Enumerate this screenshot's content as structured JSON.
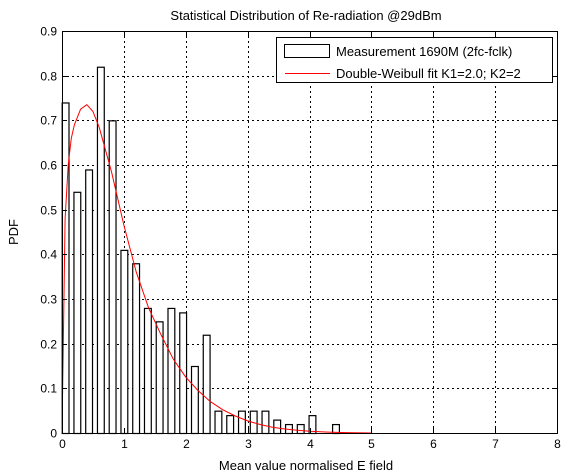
{
  "chart_data": {
    "type": "bar",
    "title": "Statistical Distribution of Re-radiation @29dBm",
    "xlabel": "Mean value normalised E field",
    "ylabel": "PDF",
    "xlim": [
      0,
      8
    ],
    "ylim": [
      0,
      0.9
    ],
    "xticks": [
      "0",
      "1",
      "2",
      "3",
      "4",
      "5",
      "6",
      "7",
      "8"
    ],
    "yticks": [
      "0",
      "0.1",
      "0.2",
      "0.3",
      "0.4",
      "0.5",
      "0.6",
      "0.7",
      "0.8",
      "0.9"
    ],
    "grid": true,
    "legend_position": "top-right",
    "bar_width": 0.11,
    "series": [
      {
        "name": "Measurement 1690M (2fc-fclk)",
        "kind": "histogram",
        "color": "#000000",
        "x": [
          0.05,
          0.24,
          0.43,
          0.62,
          0.81,
          1.0,
          1.19,
          1.38,
          1.57,
          1.76,
          1.95,
          2.14,
          2.33,
          2.52,
          2.71,
          2.9,
          3.09,
          3.28,
          3.47,
          3.66,
          3.85,
          4.04,
          4.23,
          4.42,
          4.61,
          4.8,
          4.99
        ],
        "values": [
          0.74,
          0.54,
          0.59,
          0.82,
          0.7,
          0.41,
          0.38,
          0.28,
          0.25,
          0.28,
          0.27,
          0.15,
          0.22,
          0.05,
          0.04,
          0.05,
          0.05,
          0.05,
          0.03,
          0.02,
          0.02,
          0.04,
          0.0,
          0.02,
          0.0,
          0.0,
          0.0
        ]
      },
      {
        "name": "Double-Weibull fit K1=2.0; K2=2",
        "kind": "line",
        "color": "#ff0000",
        "x": [
          0,
          0.05,
          0.1,
          0.15,
          0.2,
          0.3,
          0.4,
          0.5,
          0.6,
          0.7,
          0.8,
          0.9,
          1.0,
          1.2,
          1.4,
          1.6,
          1.8,
          2.0,
          2.2,
          2.4,
          2.6,
          2.8,
          3.0,
          3.2,
          3.4,
          3.6,
          3.8,
          4.0,
          4.3,
          4.6,
          5.0
        ],
        "values": [
          0.0,
          0.48,
          0.6,
          0.66,
          0.69,
          0.725,
          0.735,
          0.72,
          0.685,
          0.635,
          0.585,
          0.525,
          0.465,
          0.36,
          0.28,
          0.22,
          0.165,
          0.125,
          0.095,
          0.07,
          0.052,
          0.038,
          0.027,
          0.019,
          0.013,
          0.009,
          0.006,
          0.004,
          0.002,
          0.001,
          0.0
        ]
      }
    ]
  }
}
